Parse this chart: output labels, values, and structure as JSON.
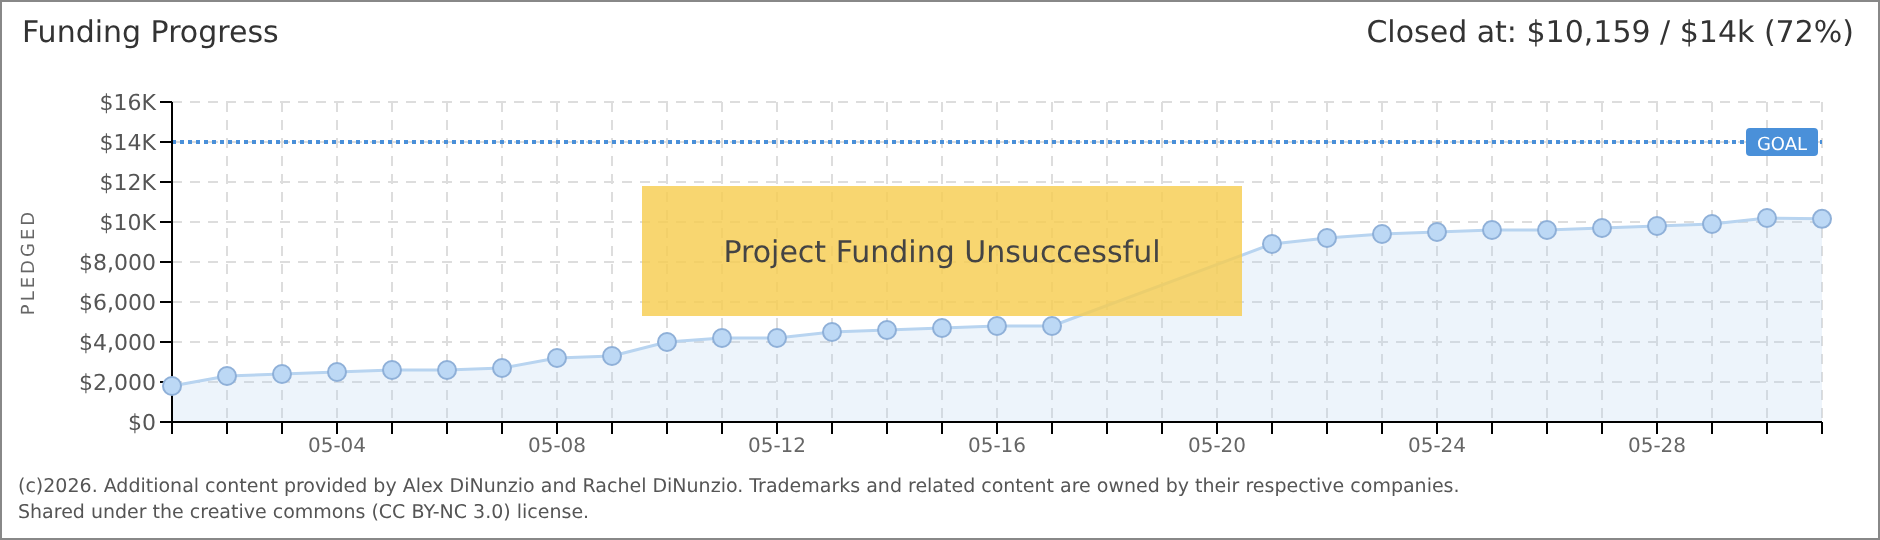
{
  "chart_data": {
    "type": "area",
    "title": "Funding Progress",
    "subtitle": "Closed at: $10,159 / $14k (72%)",
    "ylabel": "PLEDGED",
    "categories": [
      null,
      null,
      null,
      "05-04",
      null,
      null,
      null,
      "05-08",
      null,
      null,
      null,
      "05-12",
      null,
      null,
      null,
      "05-16",
      null,
      null,
      null,
      "05-20",
      null,
      null,
      null,
      "05-24",
      null,
      null,
      null,
      "05-28",
      null,
      null,
      null
    ],
    "series": [
      {
        "color": "#b8d4f0",
        "values": [
          1800,
          2300,
          2400,
          2500,
          2600,
          2600,
          2700,
          3200,
          3300,
          4000,
          4200,
          4200,
          4500,
          4600,
          4700,
          4800,
          4800,
          null,
          null,
          null,
          8900,
          9200,
          9400,
          9500,
          9600,
          9600,
          9700,
          9800,
          9900,
          10200,
          10159
        ]
      }
    ],
    "ylim": [
      0,
      16000
    ],
    "yticks": [
      {
        "value": 0,
        "label": "$0"
      },
      {
        "value": 2000,
        "label": "$2,000"
      },
      {
        "value": 4000,
        "label": "$4,000"
      },
      {
        "value": 6000,
        "label": "$6,000"
      },
      {
        "value": 8000,
        "label": "$8,000"
      },
      {
        "value": 10000,
        "label": "$10K"
      },
      {
        "value": 12000,
        "label": "$12K"
      },
      {
        "value": 14000,
        "label": "$14K"
      },
      {
        "value": 16000,
        "label": "$16K"
      }
    ],
    "grid": true,
    "marker": "circle",
    "line_style": "solid",
    "ref_lines": [
      {
        "axis": "y",
        "value": 14000,
        "label": "GOAL",
        "color": "#4a90d9",
        "line_style": "dotted"
      }
    ],
    "annotations": [
      "Project Funding Unsuccessful",
      "(c)2026. Additional content provided by Alex DiNunzio and Rachel DiNunzio. Trademarks and related content are owned by their respective companies.",
      "Shared under the creative commons (CC BY-NC 3.0) license."
    ]
  }
}
